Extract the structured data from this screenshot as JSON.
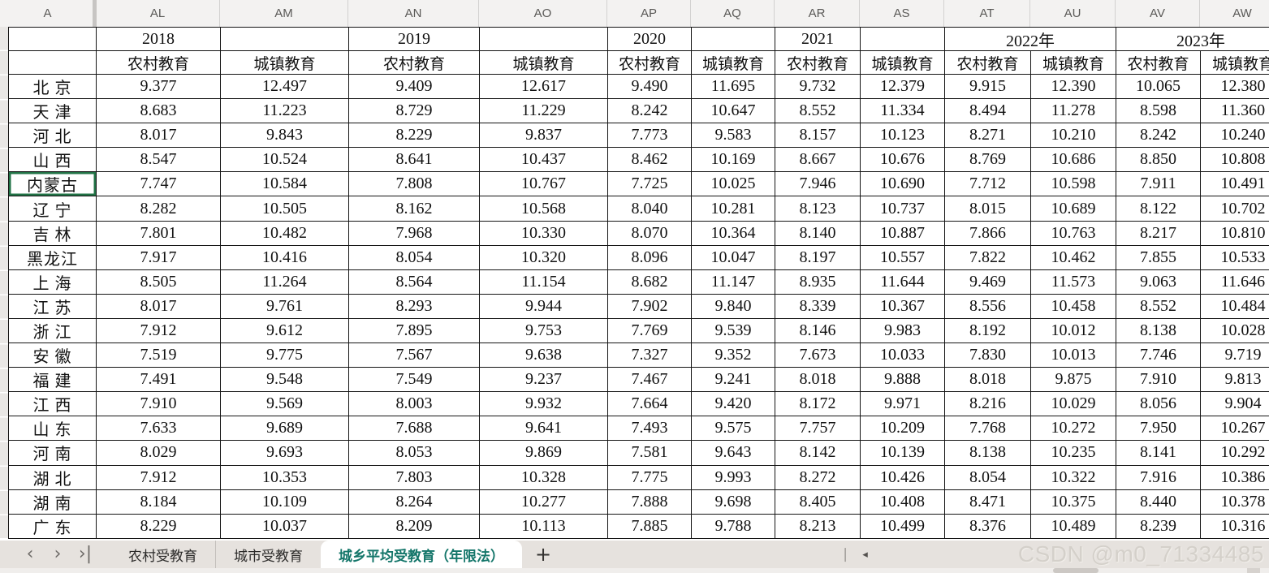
{
  "colors": {
    "selection_accent": "#217346",
    "active_tab_accent": "#14766a"
  },
  "sheet": {
    "column_letters": [
      "A",
      "AL",
      "AM",
      "AN",
      "AO",
      "AP",
      "AQ",
      "AR",
      "AS",
      "AT",
      "AU",
      "AV",
      "AW"
    ],
    "year_header": [
      {
        "label": "2018",
        "span": 1
      },
      {
        "label": "",
        "span": 1
      },
      {
        "label": "2019",
        "span": 1
      },
      {
        "label": "",
        "span": 1
      },
      {
        "label": "2020",
        "span": 1
      },
      {
        "label": "",
        "span": 1
      },
      {
        "label": "2021",
        "span": 1
      },
      {
        "label": "",
        "span": 1
      },
      {
        "label": "2022年",
        "span": 2
      },
      {
        "label": "2023年",
        "span": 2
      }
    ],
    "sub_header": [
      "农村教育",
      "城镇教育",
      "农村教育",
      "城镇教育",
      "农村教育",
      "城镇教育",
      "农村教育",
      "城镇教育",
      "农村教育",
      "城镇教育",
      "农村教育",
      "城镇教育"
    ],
    "selected_province": "内蒙古",
    "rows": [
      {
        "province": "北 京",
        "values": [
          "9.377",
          "12.497",
          "9.409",
          "12.617",
          "9.490",
          "11.695",
          "9.732",
          "12.379",
          "9.915",
          "12.390",
          "10.065",
          "12.380"
        ]
      },
      {
        "province": "天 津",
        "values": [
          "8.683",
          "11.223",
          "8.729",
          "11.229",
          "8.242",
          "10.647",
          "8.552",
          "11.334",
          "8.494",
          "11.278",
          "8.598",
          "11.360"
        ]
      },
      {
        "province": "河 北",
        "values": [
          "8.017",
          "9.843",
          "8.229",
          "9.837",
          "7.773",
          "9.583",
          "8.157",
          "10.123",
          "8.271",
          "10.210",
          "8.242",
          "10.240"
        ]
      },
      {
        "province": "山 西",
        "values": [
          "8.547",
          "10.524",
          "8.641",
          "10.437",
          "8.462",
          "10.169",
          "8.667",
          "10.676",
          "8.769",
          "10.686",
          "8.850",
          "10.808"
        ]
      },
      {
        "province": "内蒙古",
        "values": [
          "7.747",
          "10.584",
          "7.808",
          "10.767",
          "7.725",
          "10.025",
          "7.946",
          "10.690",
          "7.712",
          "10.598",
          "7.911",
          "10.491"
        ]
      },
      {
        "province": "辽 宁",
        "values": [
          "8.282",
          "10.505",
          "8.162",
          "10.568",
          "8.040",
          "10.281",
          "8.123",
          "10.737",
          "8.015",
          "10.689",
          "8.122",
          "10.702"
        ]
      },
      {
        "province": "吉 林",
        "values": [
          "7.801",
          "10.482",
          "7.968",
          "10.330",
          "8.070",
          "10.364",
          "8.140",
          "10.887",
          "7.866",
          "10.763",
          "8.217",
          "10.810"
        ]
      },
      {
        "province": "黑龙江",
        "values": [
          "7.917",
          "10.416",
          "8.054",
          "10.320",
          "8.096",
          "10.047",
          "8.197",
          "10.557",
          "7.822",
          "10.462",
          "7.855",
          "10.533"
        ]
      },
      {
        "province": "上 海",
        "values": [
          "8.505",
          "11.264",
          "8.564",
          "11.154",
          "8.682",
          "11.147",
          "8.935",
          "11.644",
          "9.469",
          "11.573",
          "9.063",
          "11.646"
        ]
      },
      {
        "province": "江 苏",
        "values": [
          "8.017",
          "9.761",
          "8.293",
          "9.944",
          "7.902",
          "9.840",
          "8.339",
          "10.367",
          "8.556",
          "10.458",
          "8.552",
          "10.484"
        ]
      },
      {
        "province": "浙 江",
        "values": [
          "7.912",
          "9.612",
          "7.895",
          "9.753",
          "7.769",
          "9.539",
          "8.146",
          "9.983",
          "8.192",
          "10.012",
          "8.138",
          "10.028"
        ]
      },
      {
        "province": "安 徽",
        "values": [
          "7.519",
          "9.775",
          "7.567",
          "9.638",
          "7.327",
          "9.352",
          "7.673",
          "10.033",
          "7.830",
          "10.013",
          "7.746",
          "9.719"
        ]
      },
      {
        "province": "福 建",
        "values": [
          "7.491",
          "9.548",
          "7.549",
          "9.237",
          "7.467",
          "9.241",
          "8.018",
          "9.888",
          "8.018",
          "9.875",
          "7.910",
          "9.813"
        ]
      },
      {
        "province": "江 西",
        "values": [
          "7.910",
          "9.569",
          "8.003",
          "9.932",
          "7.664",
          "9.420",
          "8.172",
          "9.971",
          "8.216",
          "10.029",
          "8.056",
          "9.904"
        ]
      },
      {
        "province": "山 东",
        "values": [
          "7.633",
          "9.689",
          "7.688",
          "9.641",
          "7.493",
          "9.575",
          "7.757",
          "10.209",
          "7.768",
          "10.272",
          "7.950",
          "10.267"
        ]
      },
      {
        "province": "河 南",
        "values": [
          "8.029",
          "9.693",
          "8.053",
          "9.869",
          "7.581",
          "9.643",
          "8.142",
          "10.139",
          "8.138",
          "10.235",
          "8.141",
          "10.292"
        ]
      },
      {
        "province": "湖 北",
        "values": [
          "7.912",
          "10.353",
          "7.803",
          "10.328",
          "7.775",
          "9.993",
          "8.272",
          "10.426",
          "8.054",
          "10.322",
          "7.916",
          "10.386"
        ]
      },
      {
        "province": "湖 南",
        "values": [
          "8.184",
          "10.109",
          "8.264",
          "10.277",
          "7.888",
          "9.698",
          "8.405",
          "10.408",
          "8.471",
          "10.375",
          "8.440",
          "10.378"
        ]
      },
      {
        "province": "广 东",
        "values": [
          "8.229",
          "10.037",
          "8.209",
          "10.113",
          "7.885",
          "9.788",
          "8.213",
          "10.499",
          "8.376",
          "10.489",
          "8.239",
          "10.316"
        ]
      }
    ]
  },
  "tab_bar": {
    "nav_icons": [
      {
        "name": "prev-sheet-icon",
        "glyph": "‹"
      },
      {
        "name": "next-sheet-icon",
        "glyph": "›"
      },
      {
        "name": "last-sheet-icon",
        "glyph": "›|"
      }
    ],
    "tabs": [
      {
        "label": "农村受教育",
        "active": false
      },
      {
        "label": "城市受教育",
        "active": false
      },
      {
        "label": "城乡平均受教育（年限法）",
        "active": true
      }
    ],
    "add_sheet_label": "+",
    "split_bar_glyph": "❘",
    "split_arrow_glyph": "◂"
  },
  "watermark": {
    "text": "CSDN @m0_71334485"
  }
}
